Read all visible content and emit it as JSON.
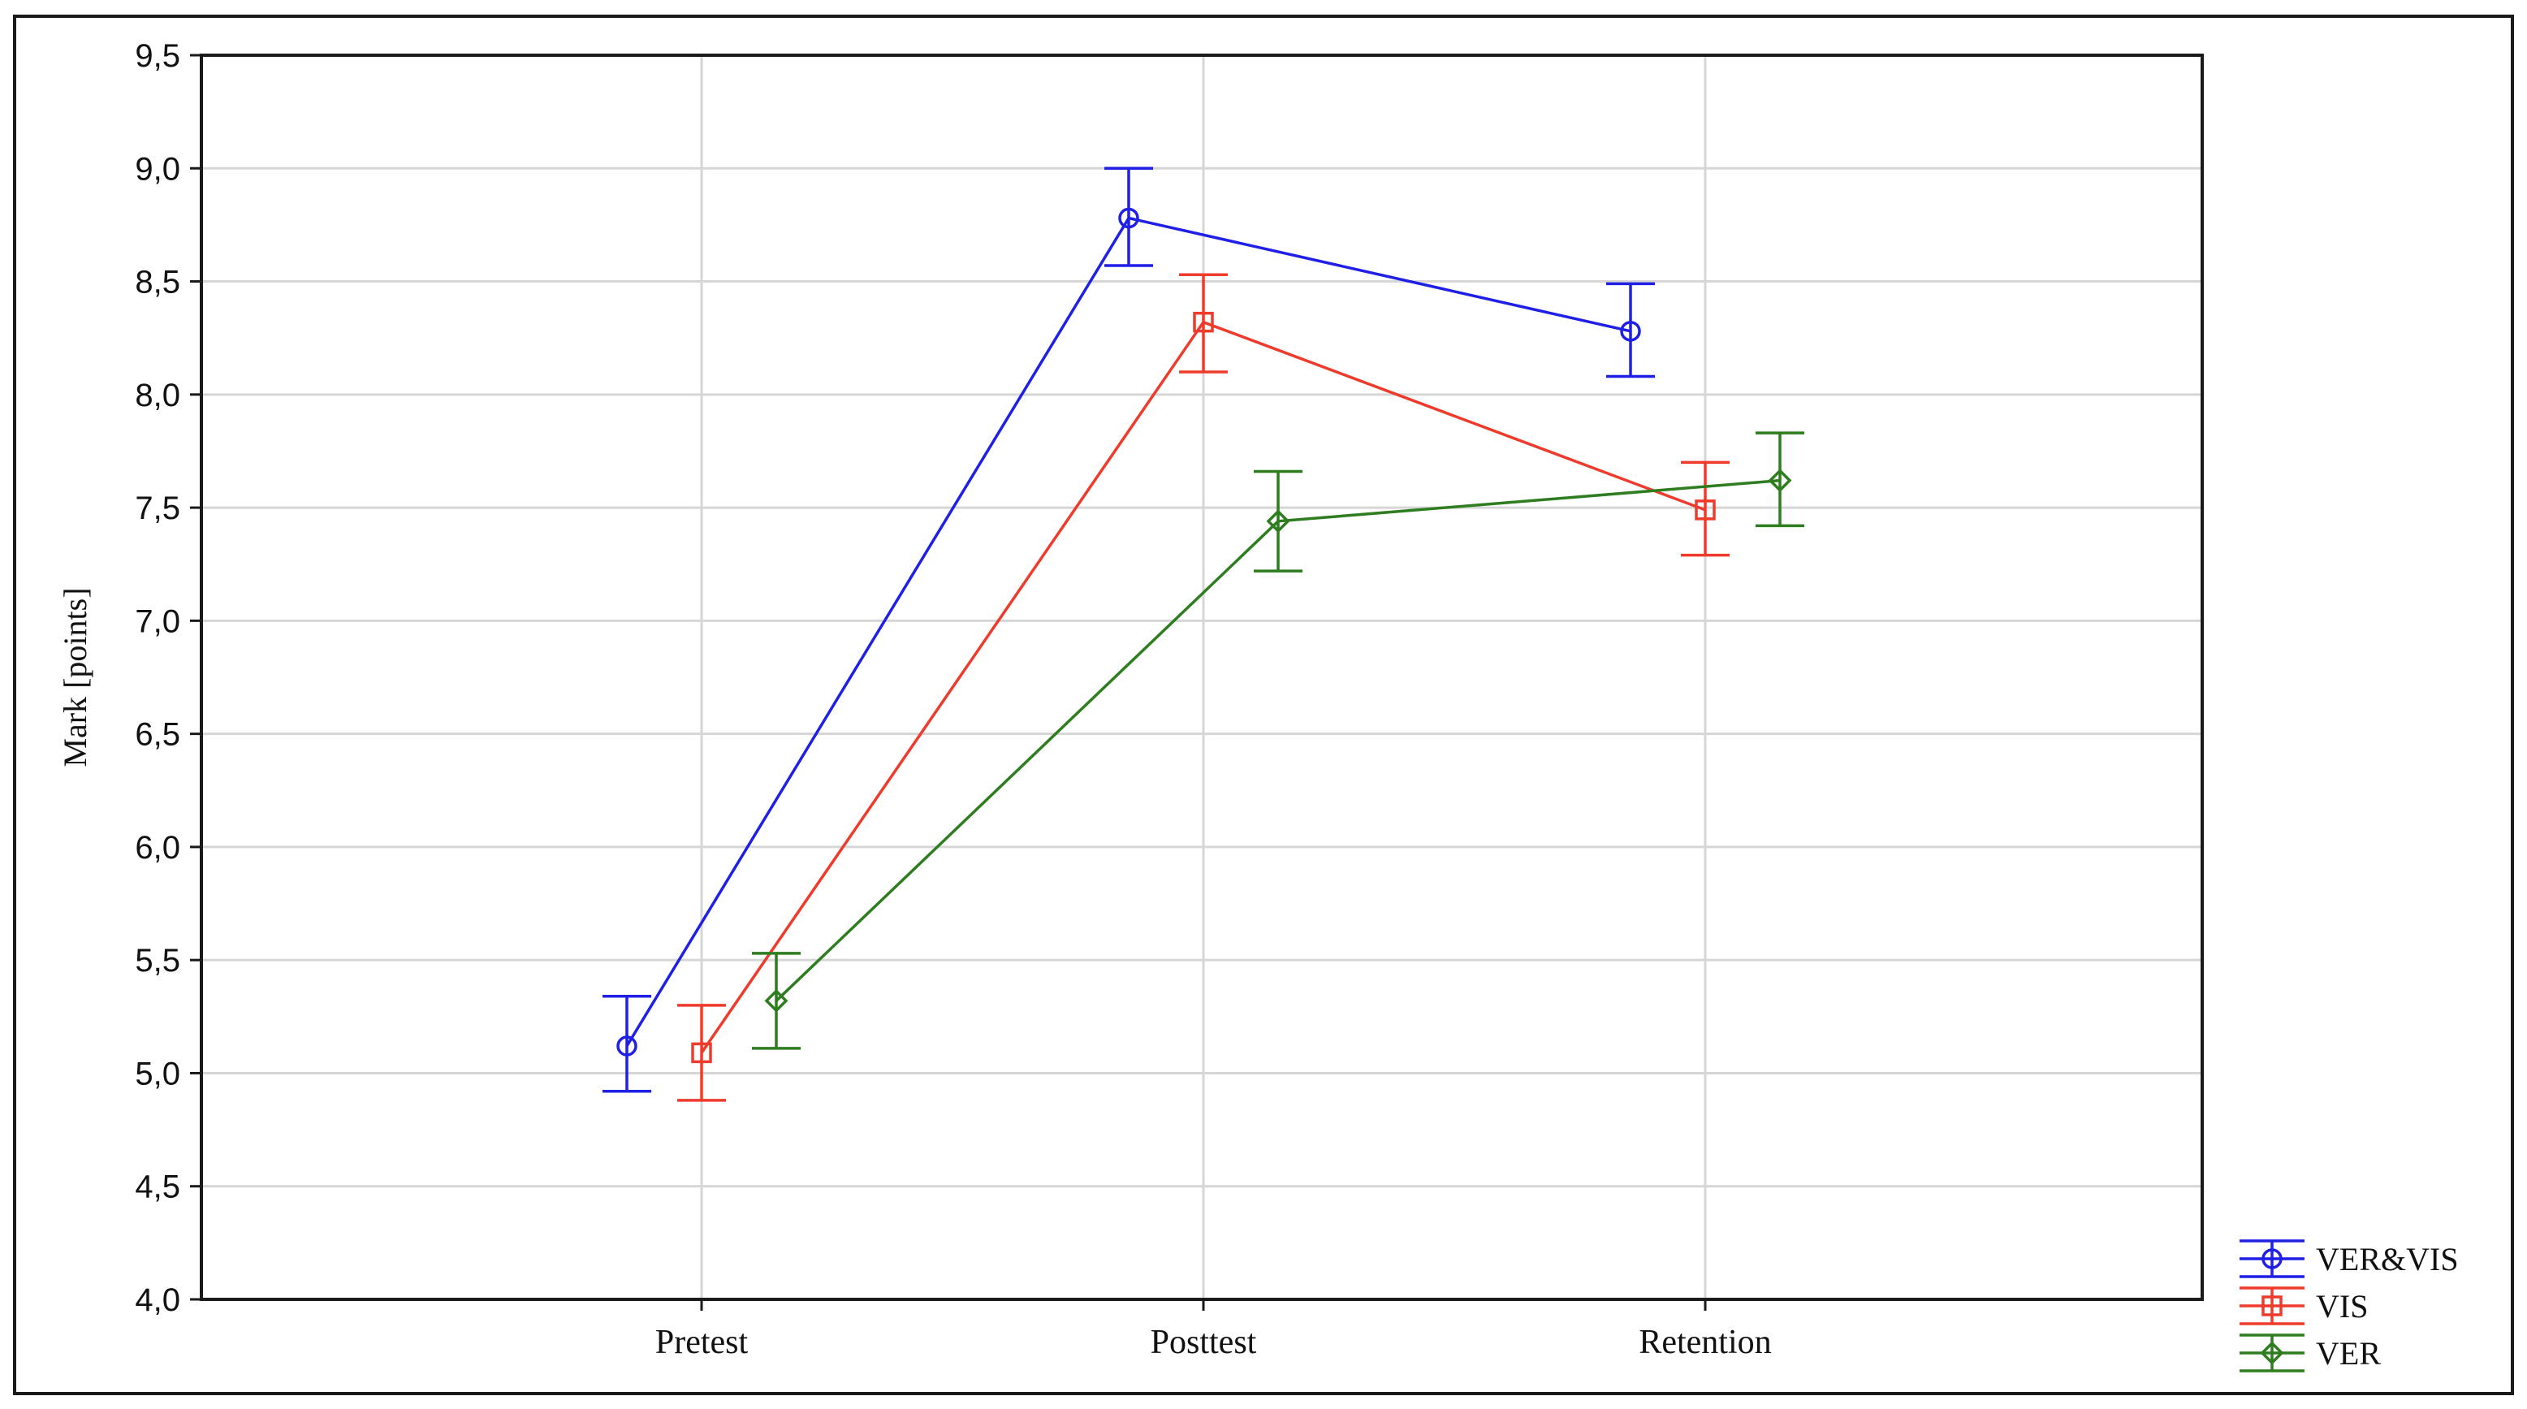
{
  "chart_data": {
    "type": "line",
    "title": "",
    "xlabel": "",
    "ylabel": "Mark [points]",
    "categories": [
      "Pretest",
      "Posttest",
      "Retention"
    ],
    "ylim": [
      4.0,
      9.5
    ],
    "yticks": [
      "4,0",
      "4,5",
      "5,0",
      "5,5",
      "6,0",
      "6,5",
      "7,0",
      "7,5",
      "8,0",
      "8,5",
      "9,0",
      "9,5"
    ],
    "grid": true,
    "legend_position": "bottom-right, outside plot area",
    "error_bars": true,
    "series": [
      {
        "name": "VER&VIS",
        "color": "#1f1fe6",
        "marker": "circle",
        "values": [
          5.12,
          8.78,
          8.28
        ],
        "lower": [
          4.92,
          8.57,
          8.08
        ],
        "upper": [
          5.34,
          9.0,
          8.49
        ]
      },
      {
        "name": "VIS",
        "color": "#ee3b2c",
        "marker": "square",
        "values": [
          5.09,
          8.32,
          7.49
        ],
        "lower": [
          4.88,
          8.1,
          7.29
        ],
        "upper": [
          5.3,
          8.53,
          7.7
        ]
      },
      {
        "name": "VER",
        "color": "#2e7d1f",
        "marker": "diamond",
        "values": [
          5.32,
          7.44,
          7.62
        ],
        "lower": [
          5.11,
          7.22,
          7.42
        ],
        "upper": [
          5.53,
          7.66,
          7.83
        ]
      }
    ]
  }
}
